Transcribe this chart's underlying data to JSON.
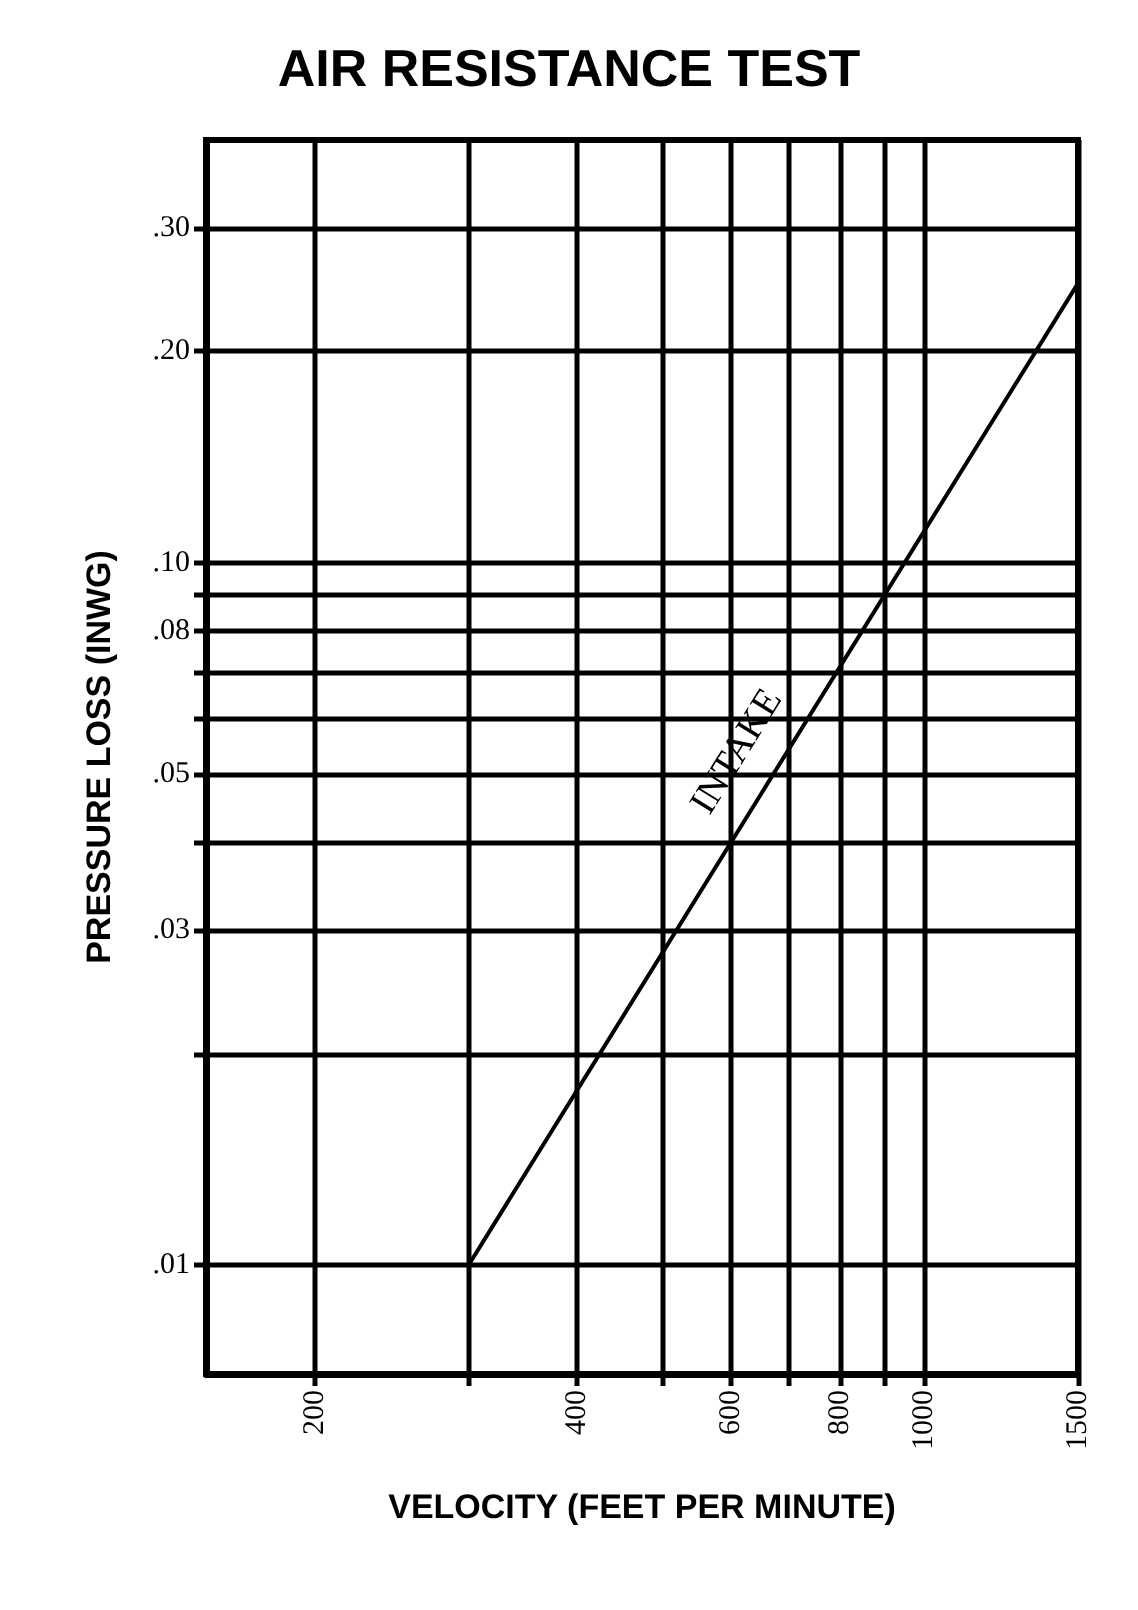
{
  "chart_data": {
    "type": "line",
    "title": "AIR RESISTANCE TEST",
    "xlabel": "VELOCITY (FEET PER MINUTE)",
    "ylabel": "PRESSURE LOSS (INWG)",
    "log": "xy",
    "grid": true,
    "legend": false,
    "marker": "none",
    "line_style": "solid",
    "xlim": [
      150,
      1500
    ],
    "ylim": [
      0.007,
      0.4
    ],
    "xticks": [
      200,
      {
        "value": 300,
        "label": null
      },
      400,
      {
        "value": 500,
        "label": null
      },
      600,
      {
        "value": 700,
        "label": null
      },
      800,
      {
        "value": 900,
        "label": null
      },
      1000,
      1500
    ],
    "yticks": [
      {
        "value": 0.01,
        "label": ".01"
      },
      {
        "value": 0.02,
        "label": null
      },
      {
        "value": 0.03,
        "label": ".03"
      },
      {
        "value": 0.04,
        "label": null
      },
      {
        "value": 0.05,
        "label": ".05"
      },
      {
        "value": 0.06,
        "label": null
      },
      {
        "value": 0.07,
        "label": null
      },
      {
        "value": 0.08,
        "label": ".08"
      },
      {
        "value": 0.09,
        "label": null
      },
      {
        "value": 0.1,
        "label": ".10"
      },
      {
        "value": 0.2,
        "label": ".20"
      },
      {
        "value": 0.3,
        "label": ".30"
      }
    ],
    "series": [
      {
        "name": "INTAKE",
        "color": "#000000",
        "x": [
          300,
          1500
        ],
        "values": [
          0.01,
          0.25
        ]
      }
    ]
  }
}
